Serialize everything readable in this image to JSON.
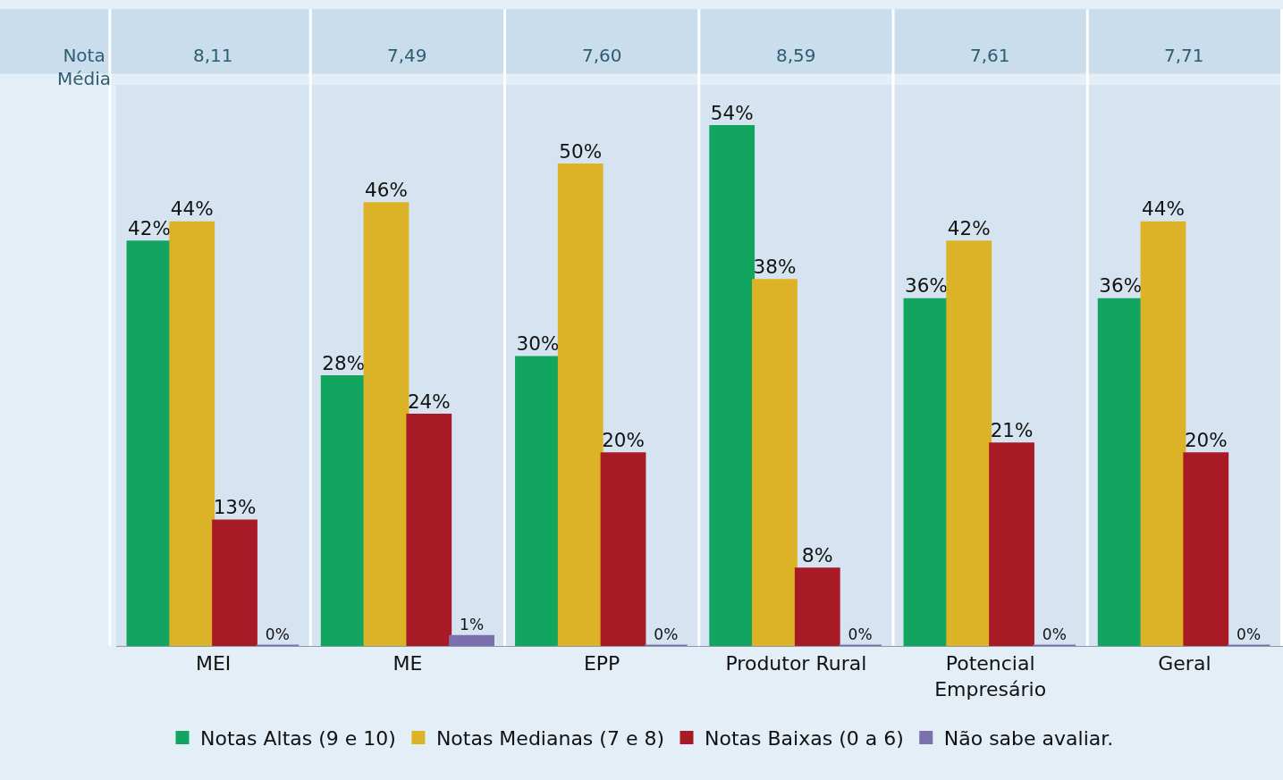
{
  "chart_data": {
    "type": "bar",
    "categories": [
      "MEI",
      "ME",
      "EPP",
      "Produtor Rural",
      "Potencial Empresário",
      "Geral"
    ],
    "series": [
      {
        "name": "Notas Altas (9 e 10)",
        "color": "#12a560",
        "values": [
          42,
          28,
          30,
          54,
          36,
          36
        ],
        "value_labels": [
          "42%",
          "28%",
          "30%",
          "54%",
          "36%",
          "36%"
        ]
      },
      {
        "name": "Notas Medianas (7 e 8)",
        "color": "#dcb327",
        "values": [
          44,
          46,
          50,
          38,
          42,
          44
        ],
        "value_labels": [
          "44%",
          "46%",
          "50%",
          "38%",
          "42%",
          "44%"
        ]
      },
      {
        "name": "Notas Baixas (0 a 6)",
        "color": "#a81a26",
        "values": [
          13,
          24,
          20,
          8,
          21,
          20
        ],
        "value_labels": [
          "13%",
          "24%",
          "20%",
          "8%",
          "21%",
          "20%"
        ]
      },
      {
        "name": "Não sabe avaliar.",
        "color": "#7b6fae",
        "values": [
          0,
          1,
          0,
          0,
          0,
          0
        ],
        "value_labels": [
          "0%",
          "1%",
          "0%",
          "0%",
          "0%",
          "0%"
        ]
      }
    ],
    "annotations": [
      "Nota Média",
      "8,11",
      "7,49",
      "7,60",
      "8,59",
      "7,61",
      "7,71"
    ],
    "grid": false,
    "legend": "bottom"
  }
}
